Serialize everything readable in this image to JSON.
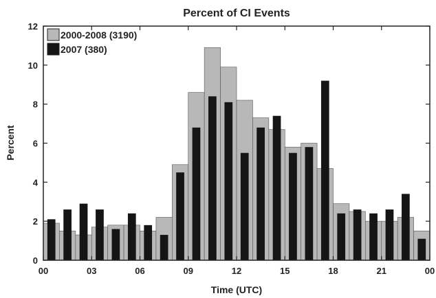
{
  "chart_data": {
    "type": "bar",
    "title": "Percent of CI Events",
    "xlabel": "Time (UTC)",
    "ylabel": "Percent",
    "xlim": [
      0,
      24
    ],
    "ylim": [
      0,
      12
    ],
    "x_tick_labels": [
      "00",
      "03",
      "06",
      "09",
      "12",
      "15",
      "18",
      "21",
      "00"
    ],
    "y_tick_labels": [
      "0",
      "2",
      "4",
      "6",
      "8",
      "10",
      "12"
    ],
    "categories": [
      0,
      1,
      2,
      3,
      4,
      5,
      6,
      7,
      8,
      9,
      10,
      11,
      12,
      13,
      14,
      15,
      16,
      17,
      18,
      19,
      20,
      21,
      22,
      23
    ],
    "legend_position": "top-left",
    "grid": false,
    "series": [
      {
        "name": "2000-2008 (3190)",
        "color": "#b8b8b8",
        "values": [
          1.9,
          1.5,
          1.3,
          1.7,
          1.8,
          1.8,
          1.5,
          2.2,
          4.9,
          8.6,
          10.9,
          9.9,
          8.2,
          7.3,
          6.7,
          5.8,
          6.0,
          4.7,
          2.9,
          2.5,
          2.0,
          2.0,
          2.2,
          1.5
        ]
      },
      {
        "name": "2007 (380)",
        "color": "#151515",
        "values": [
          2.1,
          2.6,
          2.9,
          2.6,
          1.6,
          2.4,
          1.8,
          1.3,
          4.5,
          6.8,
          8.4,
          8.1,
          5.5,
          6.8,
          7.4,
          5.5,
          5.8,
          9.2,
          2.4,
          2.6,
          2.4,
          2.6,
          3.4,
          1.1
        ]
      }
    ]
  }
}
